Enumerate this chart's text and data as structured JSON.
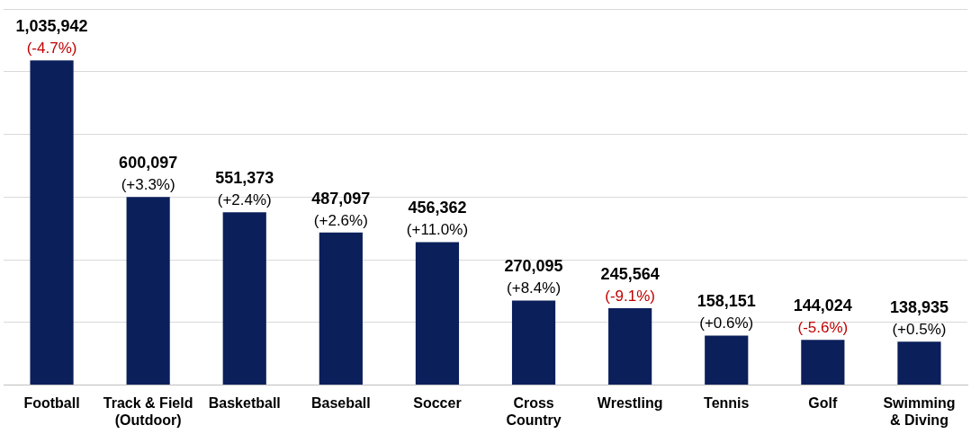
{
  "chart_data": {
    "type": "bar",
    "categories": [
      "Football",
      "Track & Field\n(Outdoor)",
      "Basketball",
      "Baseball",
      "Soccer",
      "Cross\nCountry",
      "Wrestling",
      "Tennis",
      "Golf",
      "Swimming\n& Diving"
    ],
    "values": [
      1035942,
      600097,
      551373,
      487097,
      456362,
      270095,
      245564,
      158151,
      144024,
      138935
    ],
    "value_labels": [
      "1,035,942",
      "600,097",
      "551,373",
      "487,097",
      "456,362",
      "270,095",
      "245,564",
      "158,151",
      "144,024",
      "138,935"
    ],
    "annotations": [
      {
        "text": "(-4.7%)",
        "x": "Football",
        "y": 1035942
      },
      {
        "text": "(+3.3%)",
        "x": "Track & Field\n(Outdoor)",
        "y": 600097
      },
      {
        "text": "(+2.4%)",
        "x": "Basketball",
        "y": 551373
      },
      {
        "text": "(+2.6%)",
        "x": "Baseball",
        "y": 487097
      },
      {
        "text": "(+11.0%)",
        "x": "Soccer",
        "y": 456362
      },
      {
        "text": "(+8.4%)",
        "x": "Cross\nCountry",
        "y": 270095
      },
      {
        "text": "(-9.1%)",
        "x": "Wrestling",
        "y": 245564
      },
      {
        "text": "(+0.6%)",
        "x": "Tennis",
        "y": 158151
      },
      {
        "text": "(-5.6%)",
        "x": "Golf",
        "y": 144024
      },
      {
        "text": "(+0.5%)",
        "x": "Swimming\n& Diving",
        "y": 138935
      }
    ],
    "color": "#0b1f5b",
    "ylim": [
      0,
      1200000
    ],
    "yticks": [
      {
        "value": 0,
        "label": null
      },
      {
        "value": 200000,
        "label": null
      },
      {
        "value": 400000,
        "label": null
      },
      {
        "value": 600000,
        "label": null
      },
      {
        "value": 800000,
        "label": null
      },
      {
        "value": 1000000,
        "label": null
      },
      {
        "value": 1200000,
        "label": null
      }
    ],
    "grid": "y",
    "legend": false,
    "tick_labels": "x"
  }
}
